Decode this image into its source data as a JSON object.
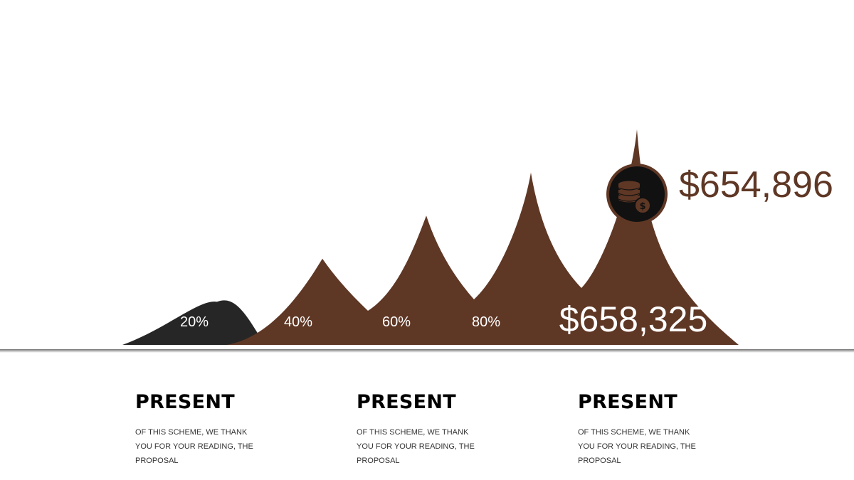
{
  "colors": {
    "brown": "#5f3725",
    "dark": "#262626",
    "label_light": "#ffffff",
    "value_brown": "#5f3725",
    "icon_circle": "#111111"
  },
  "chart_data": {
    "type": "area",
    "categories": [
      "20%",
      "40%",
      "60%",
      "80%",
      "$658,325"
    ],
    "values": [
      20,
      40,
      60,
      80,
      100
    ],
    "peak_value_label": "$654,896",
    "icon": "coins-dollar-icon"
  },
  "blocks": [
    {
      "title": "PRESENT",
      "text": "OF THIS SCHEME, WE THANK YOU FOR YOUR READING, THE PROPOSAL"
    },
    {
      "title": "PRESENT",
      "text": "OF THIS SCHEME, WE THANK YOU FOR YOUR READING, THE PROPOSAL"
    },
    {
      "title": "PRESENT",
      "text": "OF THIS SCHEME, WE THANK YOU FOR YOUR READING, THE PROPOSAL"
    }
  ]
}
